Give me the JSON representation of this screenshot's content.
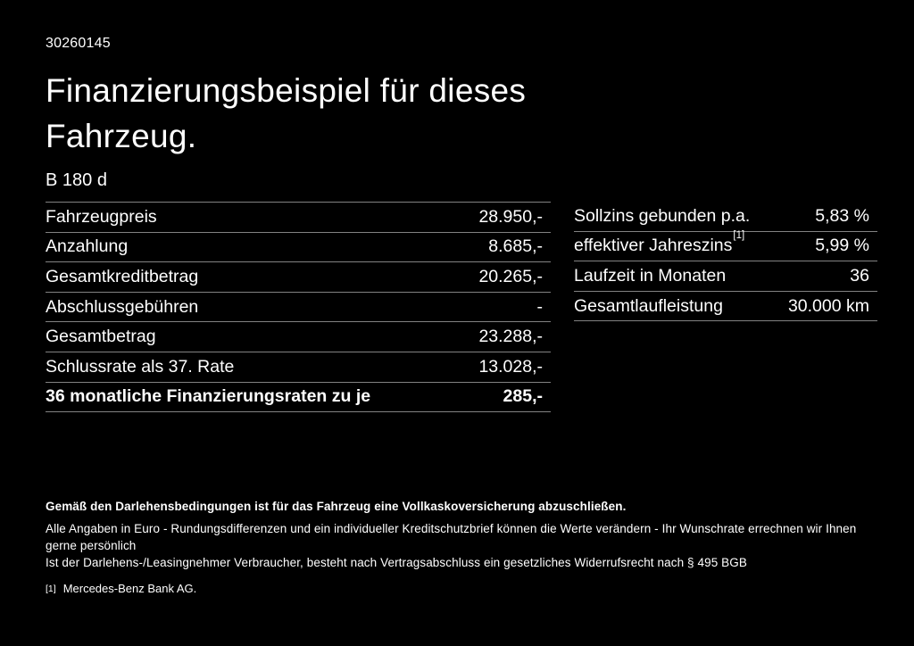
{
  "page": {
    "background": "#000000",
    "text_color": "#ffffff",
    "divider_color": "#828282"
  },
  "header": {
    "vehicle_id": "30260145",
    "title": "Finanzierungsbeispiel für dieses\nFahrzeug.",
    "model": "B 180 d"
  },
  "left_table": {
    "rows": [
      {
        "label": "Fahrzeugpreis",
        "value": "28.950,-"
      },
      {
        "label": "Anzahlung",
        "value": "8.685,-"
      },
      {
        "label": "Gesamtkreditbetrag",
        "value": "20.265,-"
      },
      {
        "label": "Abschlussgebühren",
        "value": "-"
      },
      {
        "label": "Gesamtbetrag",
        "value": "23.288,-"
      },
      {
        "label": "Schlussrate als 37. Rate",
        "value": "13.028,-"
      },
      {
        "label": "36 monatliche Finanzierungsraten zu je",
        "value": "285,-"
      }
    ]
  },
  "right_table": {
    "rows": [
      {
        "label": "Sollzins gebunden p.a.",
        "sup": "",
        "value": "5,83 %"
      },
      {
        "label": "effektiver Jahreszins",
        "sup": "[1]",
        "value": "5,99 %"
      },
      {
        "label": "Laufzeit in Monaten",
        "sup": "",
        "value": "36"
      },
      {
        "label": "Gesamtlaufleistung",
        "sup": "",
        "value": "30.000 km"
      }
    ]
  },
  "footer": {
    "disclaimer_bold": "Gemäß den Darlehensbedingungen ist für das Fahrzeug eine Vollkaskoversicherung abzuschließen.",
    "disclaimer_line1": "Alle Angaben in Euro - Rundungsdifferenzen und ein individueller Kreditschutzbrief können die Werte verändern - Ihr Wunschrate errechnen wir Ihnen gerne persönlich",
    "disclaimer_line2": "Ist der Darlehens-/Leasingnehmer Verbraucher, besteht nach Vertragsabschluss ein gesetzliches Widerrufsrecht nach § 495 BGB",
    "footnote_marker": "[1]",
    "footnote_text": "Mercedes-Benz Bank AG."
  }
}
